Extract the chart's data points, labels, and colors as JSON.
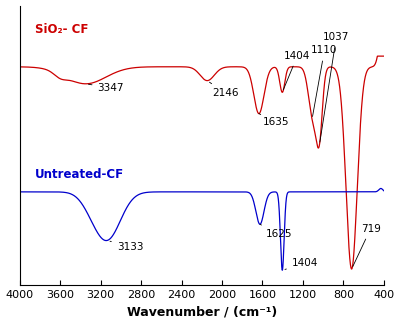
{
  "xlabel": "Wavenumber / (cm⁻¹)",
  "red_label": "SiO₂- CF",
  "blue_label": "Untreated-CF",
  "red_color": "#cc0000",
  "blue_color": "#0000cc",
  "background_color": "#ffffff",
  "xtick_positions": [
    4000,
    3600,
    3200,
    2800,
    2400,
    2000,
    1600,
    1200,
    800,
    400
  ]
}
